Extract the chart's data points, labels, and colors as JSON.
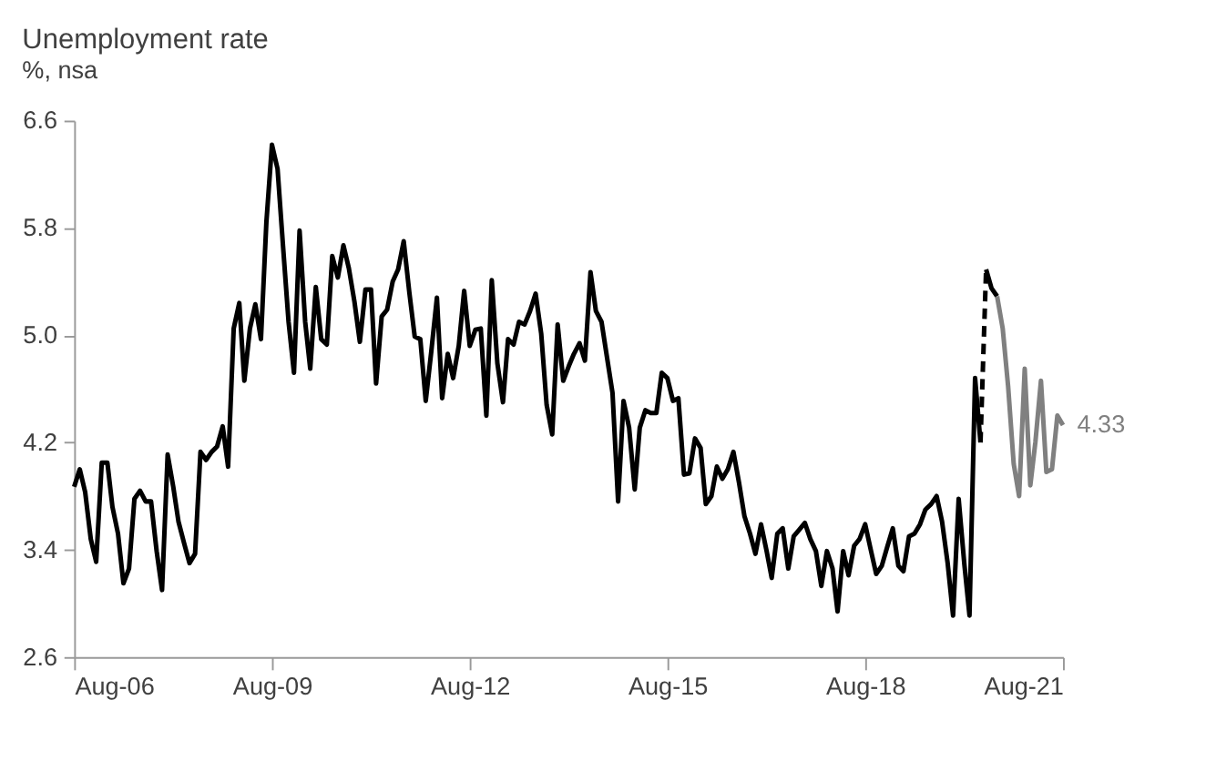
{
  "chart_data": {
    "type": "line",
    "title": "Unemployment rate",
    "subtitle": "%, nsa",
    "xlim": [
      "2006-08",
      "2021-08"
    ],
    "xticks": [
      {
        "value": "2006-08",
        "label": "Aug-06"
      },
      {
        "value": "2009-08",
        "label": "Aug-09"
      },
      {
        "value": "2012-08",
        "label": "Aug-12"
      },
      {
        "value": "2015-08",
        "label": "Aug-15"
      },
      {
        "value": "2018-08",
        "label": "Aug-18"
      },
      {
        "value": "2021-08",
        "label": "Aug-21"
      }
    ],
    "ylim": [
      2.6,
      6.6
    ],
    "yticks": [
      2.6,
      3.4,
      4.2,
      {
        "value": 5.0,
        "label": "5.0"
      },
      5.8,
      6.6
    ],
    "grid": false,
    "series": [
      {
        "color": "#000000",
        "line_style": "solid",
        "x": [
          "2006-08",
          "2006-09",
          "2006-10",
          "2006-11",
          "2006-12",
          "2007-01",
          "2007-02",
          "2007-03",
          "2007-04",
          "2007-05",
          "2007-06",
          "2007-07",
          "2007-08",
          "2007-09",
          "2007-10",
          "2007-11",
          "2007-12",
          "2008-01",
          "2008-02",
          "2008-03",
          "2008-04",
          "2008-05",
          "2008-06",
          "2008-07",
          "2008-08",
          "2008-09",
          "2008-10",
          "2008-11",
          "2008-12",
          "2009-01",
          "2009-02",
          "2009-03",
          "2009-04",
          "2009-05",
          "2009-06",
          "2009-07",
          "2009-08",
          "2009-09",
          "2009-10",
          "2009-11",
          "2009-12",
          "2010-01",
          "2010-02",
          "2010-03",
          "2010-04",
          "2010-05",
          "2010-06",
          "2010-07",
          "2010-08",
          "2010-09",
          "2010-10",
          "2010-11",
          "2010-12",
          "2011-01",
          "2011-02",
          "2011-03",
          "2011-04",
          "2011-05",
          "2011-06",
          "2011-07",
          "2011-08",
          "2011-09",
          "2011-10",
          "2011-11",
          "2011-12",
          "2012-01",
          "2012-02",
          "2012-03",
          "2012-04",
          "2012-05",
          "2012-06",
          "2012-07",
          "2012-08",
          "2012-09",
          "2012-10",
          "2012-11",
          "2012-12",
          "2013-01",
          "2013-02",
          "2013-03",
          "2013-04",
          "2013-05",
          "2013-06",
          "2013-07",
          "2013-08",
          "2013-09",
          "2013-10",
          "2013-11",
          "2013-12",
          "2014-01",
          "2014-02",
          "2014-03",
          "2014-04",
          "2014-05",
          "2014-06",
          "2014-07",
          "2014-08",
          "2014-09",
          "2014-10",
          "2014-11",
          "2014-12",
          "2015-01",
          "2015-02",
          "2015-03",
          "2015-04",
          "2015-05",
          "2015-06",
          "2015-07",
          "2015-08",
          "2015-09",
          "2015-10",
          "2015-11",
          "2015-12",
          "2016-01",
          "2016-02",
          "2016-03",
          "2016-04",
          "2016-05",
          "2016-06",
          "2016-07",
          "2016-08",
          "2016-09",
          "2016-10",
          "2016-11",
          "2016-12",
          "2017-01",
          "2017-02",
          "2017-03",
          "2017-04",
          "2017-05",
          "2017-06",
          "2017-07",
          "2017-08",
          "2017-09",
          "2017-10",
          "2017-11",
          "2017-12",
          "2018-01",
          "2018-02",
          "2018-03",
          "2018-04",
          "2018-05",
          "2018-06",
          "2018-07",
          "2018-08",
          "2018-09",
          "2018-10",
          "2018-11",
          "2018-12",
          "2019-01",
          "2019-02",
          "2019-03",
          "2019-04",
          "2019-05",
          "2019-06",
          "2019-07",
          "2019-08",
          "2019-09",
          "2019-10",
          "2019-11",
          "2019-12",
          "2020-01",
          "2020-02",
          "2020-03",
          "2020-04",
          "2020-05"
        ],
        "values": [
          3.87,
          4.0,
          3.83,
          3.48,
          3.31,
          4.05,
          4.05,
          3.72,
          3.52,
          3.15,
          3.26,
          3.78,
          3.84,
          3.76,
          3.76,
          3.39,
          3.1,
          4.11,
          3.87,
          3.61,
          3.45,
          3.3,
          3.37,
          4.13,
          4.07,
          4.13,
          4.17,
          4.32,
          4.02,
          5.05,
          5.24,
          4.66,
          5.05,
          5.23,
          4.97,
          5.84,
          6.42,
          6.24,
          5.67,
          5.1,
          4.72,
          5.78,
          5.1,
          4.75,
          5.36,
          4.97,
          4.93,
          5.59,
          5.43,
          5.67,
          5.5,
          5.25,
          4.95,
          5.34,
          5.34,
          4.64,
          5.14,
          5.19,
          5.4,
          5.49,
          5.7,
          5.32,
          4.99,
          4.97,
          4.51,
          4.88,
          5.28,
          4.53,
          4.86,
          4.68,
          4.92,
          5.33,
          4.92,
          5.04,
          5.05,
          4.4,
          5.41,
          4.79,
          4.5,
          4.97,
          4.93,
          5.1,
          5.08,
          5.18,
          5.31,
          5.01,
          4.48,
          4.26,
          5.08,
          4.66,
          4.77,
          4.86,
          4.94,
          4.81,
          5.47,
          5.18,
          5.1,
          4.83,
          4.57,
          3.76,
          4.51,
          4.31,
          3.85,
          4.31,
          4.44,
          4.42,
          4.42,
          4.72,
          4.68,
          4.51,
          4.53,
          3.96,
          3.97,
          4.23,
          4.16,
          3.74,
          3.8,
          4.02,
          3.93,
          4.0,
          4.13,
          3.9,
          3.65,
          3.52,
          3.37,
          3.59,
          3.39,
          3.19,
          3.52,
          3.56,
          3.26,
          3.5,
          3.55,
          3.6,
          3.48,
          3.39,
          3.13,
          3.39,
          3.26,
          2.94,
          3.39,
          3.21,
          3.43,
          3.48,
          3.59,
          3.4,
          3.22,
          3.28,
          3.42,
          3.56,
          3.28,
          3.24,
          3.5,
          3.52,
          3.59,
          3.7,
          3.74,
          3.8,
          3.61,
          3.3,
          2.91,
          3.78,
          3.3,
          2.91,
          4.68,
          4.2
        ]
      },
      {
        "color": "#000000",
        "line_style": "dashed",
        "x": [
          "2020-05",
          "2020-06"
        ],
        "values": [
          4.2,
          5.49
        ]
      },
      {
        "color": "#000000",
        "line_style": "solid",
        "x": [
          "2020-06",
          "2020-07",
          "2020-08"
        ],
        "values": [
          5.49,
          5.35,
          5.29
        ]
      },
      {
        "color": "#808080",
        "line_style": "solid",
        "x": [
          "2020-08",
          "2020-09",
          "2020-10",
          "2020-11",
          "2020-12",
          "2021-01",
          "2021-02",
          "2021-03",
          "2021-04",
          "2021-05",
          "2021-06",
          "2021-07",
          "2021-08"
        ],
        "values": [
          5.29,
          5.05,
          4.62,
          4.04,
          3.8,
          4.75,
          3.88,
          4.2,
          4.66,
          3.98,
          4.0,
          4.4,
          4.33
        ],
        "value_labels": [
          null,
          null,
          null,
          null,
          null,
          null,
          null,
          null,
          null,
          null,
          null,
          null,
          "4.33"
        ]
      }
    ]
  }
}
